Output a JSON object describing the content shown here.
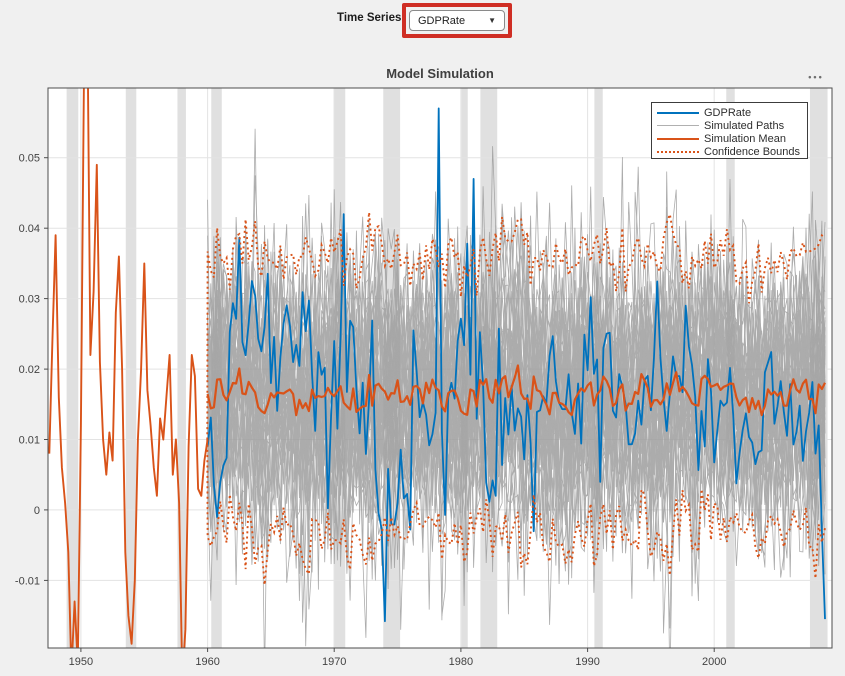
{
  "window": {
    "background": "#f0f0f0"
  },
  "controls": {
    "time_series_label": "Time Series",
    "dropdown_value": "GDPRate",
    "dropdown_icon": "▼",
    "highlight_color": "#cf2e24"
  },
  "axes_toolbar": {
    "glyph": "•••"
  },
  "chart_data": {
    "type": "line",
    "title": "Model Simulation",
    "xlim": [
      1947.4,
      2009.3
    ],
    "ylim": [
      -0.0196,
      0.0599
    ],
    "xticks": [
      1950,
      1960,
      1970,
      1980,
      1990,
      2000
    ],
    "yticks": [
      -0.01,
      0,
      0.01,
      0.02,
      0.03,
      0.04,
      0.05
    ],
    "ytick_labels": [
      "-0.01",
      "0",
      "0.01",
      "0.02",
      "0.03",
      "0.04",
      "0.05"
    ],
    "grid": true,
    "grid_color": "#e3e3e3",
    "axis_color": "#4d4d4d",
    "tick_label_color": "#424242",
    "plot_bg": "#ffffff",
    "recession_band_color": "#e0e0e0",
    "recession_bands": [
      [
        1948.87,
        1949.79
      ],
      [
        1953.54,
        1954.37
      ],
      [
        1957.62,
        1958.29
      ],
      [
        1960.29,
        1961.12
      ],
      [
        1969.95,
        1970.87
      ],
      [
        1973.87,
        1975.2
      ],
      [
        1980.04,
        1980.54
      ],
      [
        1981.54,
        1982.87
      ],
      [
        1990.54,
        1991.2
      ],
      [
        2000.95,
        2001.62
      ],
      [
        2007.56,
        2008.95
      ]
    ],
    "legend": {
      "position": "northeast",
      "entries": [
        {
          "label": "GDPRate",
          "color": "#0072BD",
          "weight": "thick",
          "dash": "solid"
        },
        {
          "label": "Simulated Paths",
          "color": "#b0b0b0",
          "weight": "thin",
          "dash": "solid"
        },
        {
          "label": "Simulation Mean",
          "color": "#D95319",
          "weight": "thick",
          "dash": "solid"
        },
        {
          "label": "Confidence Bounds",
          "color": "#D95319",
          "weight": "thick",
          "dash": "dotted"
        }
      ]
    },
    "series": {
      "historical_gdprate": {
        "color": "#D95319",
        "width": 1.9,
        "points": [
          [
            1947.5,
            0.008
          ],
          [
            1947.75,
            0.024
          ],
          [
            1948.0,
            0.039
          ],
          [
            1948.25,
            0.016
          ],
          [
            1948.5,
            0.006
          ],
          [
            1948.75,
            0.001
          ],
          [
            1949.0,
            -0.006
          ],
          [
            1949.25,
            -0.023
          ],
          [
            1949.5,
            -0.013
          ],
          [
            1949.75,
            -0.022
          ],
          [
            1950.0,
            0.012
          ],
          [
            1950.25,
            0.064
          ],
          [
            1950.5,
            0.071
          ],
          [
            1950.75,
            0.022
          ],
          [
            1951.0,
            0.031
          ],
          [
            1951.25,
            0.049
          ],
          [
            1951.5,
            0.021
          ],
          [
            1951.75,
            0.01
          ],
          [
            1952.0,
            0.005
          ],
          [
            1952.25,
            0.011
          ],
          [
            1952.5,
            0.007
          ],
          [
            1952.75,
            0.028
          ],
          [
            1953.0,
            0.036
          ],
          [
            1953.25,
            0.02
          ],
          [
            1953.5,
            -0.006
          ],
          [
            1953.75,
            -0.015
          ],
          [
            1954.0,
            -0.019
          ],
          [
            1954.25,
            -0.01
          ],
          [
            1954.5,
            0.01
          ],
          [
            1954.75,
            0.02
          ],
          [
            1955.0,
            0.035
          ],
          [
            1955.25,
            0.017
          ],
          [
            1955.5,
            0.012
          ],
          [
            1955.75,
            0.006
          ],
          [
            1956.0,
            0.002
          ],
          [
            1956.25,
            0.013
          ],
          [
            1956.5,
            0.01
          ],
          [
            1956.75,
            0.016
          ],
          [
            1957.0,
            0.022
          ],
          [
            1957.25,
            0.005
          ],
          [
            1957.5,
            0.01
          ],
          [
            1957.75,
            0.001
          ],
          [
            1958.0,
            -0.024
          ],
          [
            1958.25,
            -0.017
          ],
          [
            1958.5,
            0.009
          ],
          [
            1958.75,
            0.022
          ],
          [
            1959.0,
            0.019
          ],
          [
            1959.25,
            0.003
          ],
          [
            1959.5,
            0.002
          ],
          [
            1959.75,
            0.007
          ],
          [
            1960.0,
            0.01
          ]
        ]
      },
      "observed_gdprate": {
        "color": "#0072BD",
        "width": 1.8,
        "start": 1960,
        "end": 2008.75,
        "step": 0.25,
        "mean": 0.0165,
        "ar": 0.45,
        "sigma_before_1984": 0.0085,
        "sigma_after_1984": 0.005,
        "seed": 1234,
        "keypoints": [
          [
            1960.0,
            0.009
          ],
          [
            1961.0,
            0.004
          ],
          [
            1970.75,
            0.042
          ],
          [
            1975.0,
            0.001
          ],
          [
            1978.25,
            0.057
          ],
          [
            1981.0,
            0.047
          ],
          [
            1982.75,
            0.002
          ],
          [
            1991.0,
            0.004
          ],
          [
            2008.0,
            0.008
          ],
          [
            2008.25,
            0.012
          ],
          [
            2008.5,
            -0.003
          ],
          [
            2008.75,
            -0.0155
          ]
        ]
      },
      "simulated_paths": {
        "color": "#9e9e9e",
        "opacity": 0.85,
        "width": 0.8,
        "n_paths": 40,
        "start": 1960,
        "end": 2008.75,
        "step": 0.25,
        "mean": 0.0165,
        "ar": 0.3,
        "sigma": 0.0095,
        "seed": 99
      },
      "simulation_mean": {
        "color": "#D95319",
        "width": 2.2
      },
      "confidence_bounds": {
        "color": "#D95319",
        "width": 1.9,
        "z": 2,
        "dash": "2 3.2"
      }
    }
  }
}
